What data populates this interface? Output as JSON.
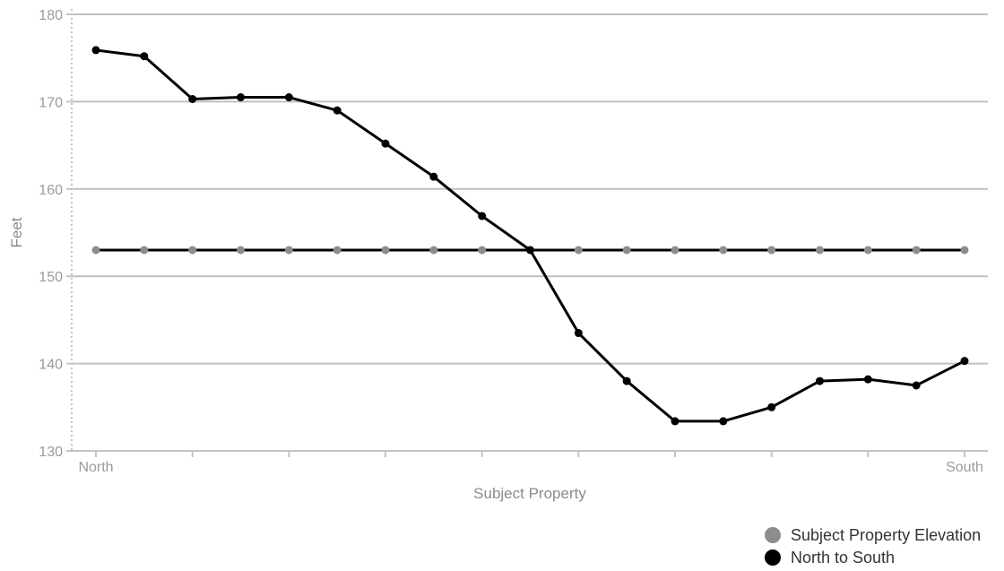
{
  "chart_data": {
    "type": "line",
    "title": "",
    "xlabel": "Subject Property",
    "ylabel": "Feet",
    "ylim": [
      130,
      180
    ],
    "y_ticks": [
      130,
      140,
      150,
      160,
      170,
      180
    ],
    "x_start_label": "North",
    "x_end_label": "South",
    "point_count": 19,
    "grid": true,
    "legend_placement": "bottom-right",
    "series": [
      {
        "name": "Subject Property Elevation",
        "color": "#000000",
        "marker_color": "#8c8c8c",
        "values": [
          153,
          153,
          153,
          153,
          153,
          153,
          153,
          153,
          153,
          153,
          153,
          153,
          153,
          153,
          153,
          153,
          153,
          153,
          153
        ]
      },
      {
        "name": "North to South",
        "color": "#000000",
        "marker_color": "#000000",
        "values": [
          175.9,
          175.2,
          170.3,
          170.5,
          170.5,
          169.0,
          165.2,
          161.4,
          156.9,
          153.0,
          143.5,
          138.0,
          133.4,
          133.4,
          135.0,
          138.0,
          138.2,
          137.5,
          140.3
        ]
      }
    ]
  }
}
